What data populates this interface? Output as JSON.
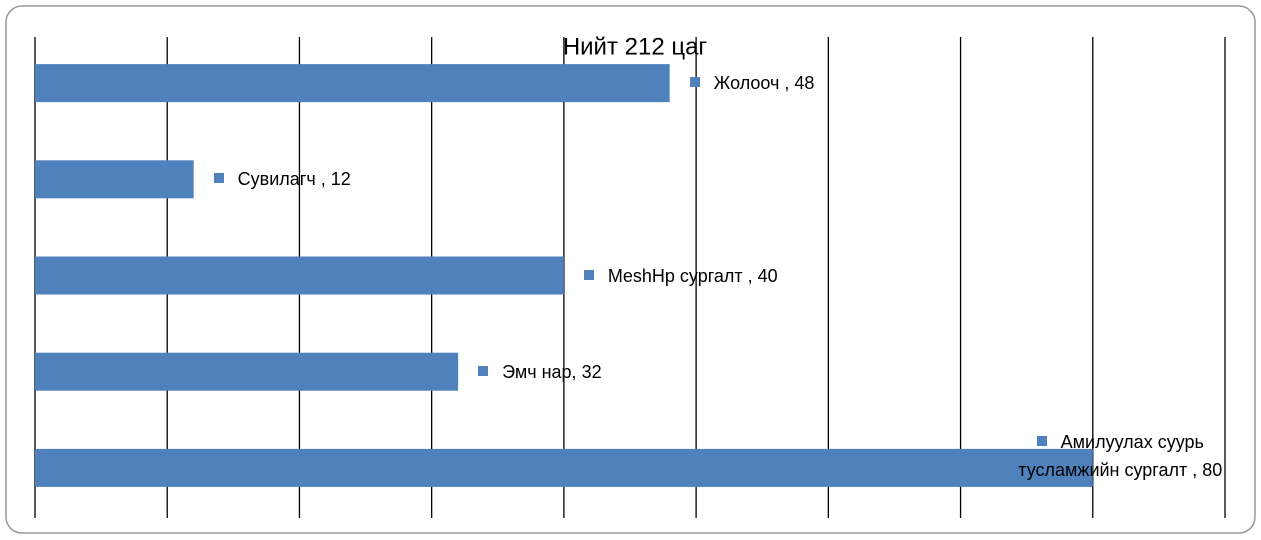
{
  "chart_data": {
    "type": "barh",
    "title": "Нийт 212 цаг",
    "values": [
      48,
      12,
      40,
      32,
      80
    ],
    "value_labels": [
      "Жолооч , 48",
      "Сувилагч , 12",
      "MeshHp сургалт , 40",
      "Эмч нар, 32",
      "Амилуулах суурь тусламжийн сургалт , 80"
    ],
    "color": "#4f81bd",
    "xlim": [
      0,
      90
    ],
    "xticks": [
      0,
      10,
      20,
      30,
      40,
      50,
      60,
      70,
      80,
      90
    ],
    "grid": true
  }
}
